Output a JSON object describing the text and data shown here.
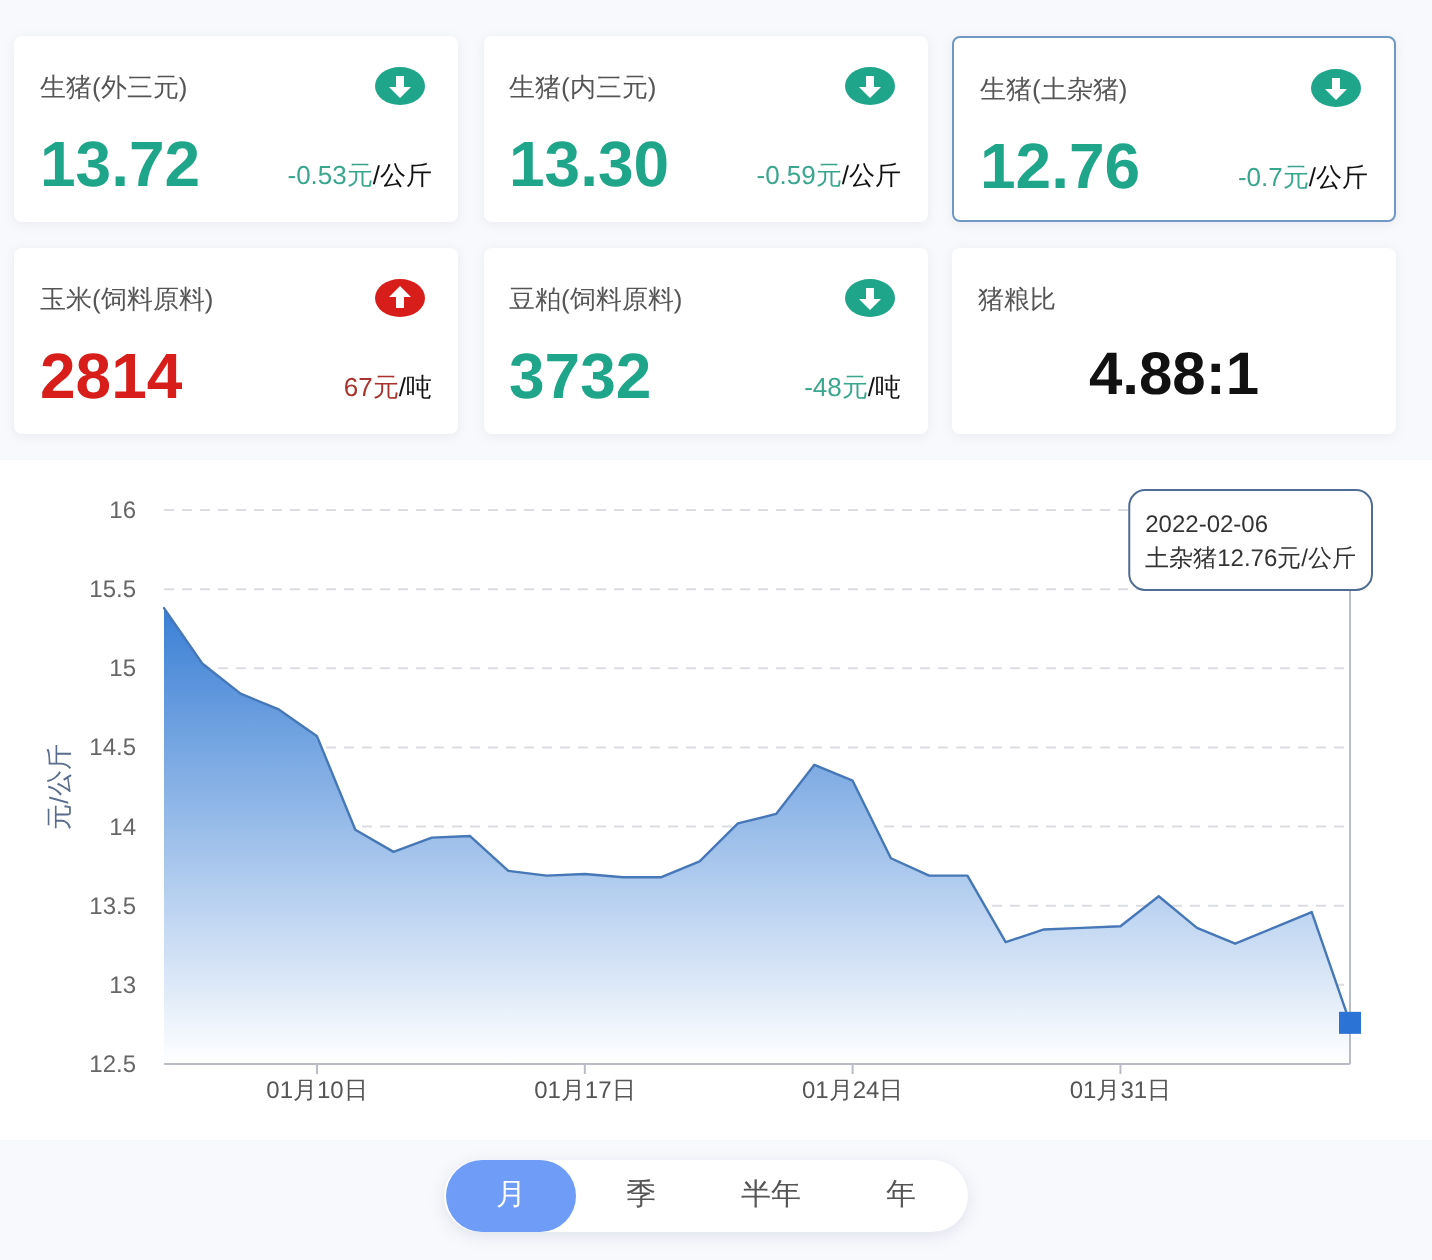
{
  "chart_data": [
    {
      "type": "other",
      "title": "生猪(外三元)",
      "annotations": [
        "13.72",
        "/公斤"
      ],
      "values": [
        -0.53
      ],
      "value_labels": [
        "-0.53元"
      ]
    },
    {
      "type": "other",
      "title": "生猪(内三元)",
      "annotations": [
        "13.30",
        "/公斤"
      ],
      "values": [
        -0.59
      ],
      "value_labels": [
        "-0.59元"
      ]
    },
    {
      "type": "other",
      "title": "生猪(土杂猪)",
      "annotations": [
        "12.76",
        "/公斤"
      ],
      "values": [
        -0.7
      ],
      "value_labels": [
        "-0.7元"
      ]
    },
    {
      "type": "other",
      "title": "玉米(饲料原料)",
      "annotations": [
        "2814",
        "/吨"
      ],
      "values": [
        67
      ],
      "value_labels": [
        "67元"
      ]
    },
    {
      "type": "other",
      "title": "豆粕(饲料原料)",
      "annotations": [
        "3732",
        "/吨"
      ],
      "values": [
        -48
      ],
      "value_labels": [
        "-48元"
      ]
    },
    {
      "type": "other",
      "title": "猪粮比",
      "annotations": [
        "4.88:1"
      ]
    },
    {
      "type": "area",
      "ylabel": "元/公斤",
      "x": [
        "2022-01-06",
        "2022-01-07",
        "2022-01-08",
        "2022-01-09",
        "2022-01-10",
        "2022-01-11",
        "2022-01-12",
        "2022-01-13",
        "2022-01-14",
        "2022-01-15",
        "2022-01-16",
        "2022-01-17",
        "2022-01-18",
        "2022-01-19",
        "2022-01-20",
        "2022-01-21",
        "2022-01-22",
        "2022-01-23",
        "2022-01-24",
        "2022-01-25",
        "2022-01-26",
        "2022-01-27",
        "2022-01-28",
        "2022-01-29",
        "2022-01-30",
        "2022-01-31",
        "2022-02-01",
        "2022-02-02",
        "2022-02-03",
        "2022-02-04",
        "2022-02-05",
        "2022-02-06"
      ],
      "series": [
        {
          "type": "area",
          "color": "#3a7fd5",
          "values": [
            15.38,
            15.03,
            14.84,
            14.74,
            14.57,
            13.98,
            13.84,
            13.93,
            13.94,
            13.72,
            13.69,
            13.7,
            13.68,
            13.68,
            13.78,
            14.02,
            14.08,
            14.39,
            14.29,
            13.8,
            13.69,
            13.69,
            13.27,
            13.35,
            13.36,
            13.37,
            13.56,
            13.36,
            13.26,
            13.36,
            13.46,
            12.76
          ]
        },
        {
          "type": "scatter",
          "marker": "square",
          "color": "#2b73d4",
          "x": [
            "2022-02-06"
          ],
          "values": [
            12.76
          ]
        }
      ],
      "xlim": [
        "2022-01-06",
        "2022-02-06"
      ],
      "ylim": [
        12.5,
        16
      ],
      "yticks": [
        12.5,
        13,
        13.5,
        14,
        14.5,
        15,
        15.5,
        16
      ],
      "xticks": [
        {
          "value": "2022-01-10",
          "label": "01月10日"
        },
        {
          "value": "2022-01-17",
          "label": "01月17日"
        },
        {
          "value": "2022-01-24",
          "label": "01月24日"
        },
        {
          "value": "2022-01-31",
          "label": "01月31日"
        }
      ],
      "grid": "y",
      "ref_lines": [
        {
          "axis": "x",
          "value": "2022-02-06",
          "color": "#b8bcc6"
        }
      ],
      "annotations": [
        "2022-02-06\n土杂猪12.76元/公斤"
      ]
    },
    {
      "type": "other",
      "annotations": [
        "月",
        "季",
        "半年",
        "年"
      ]
    }
  ]
}
